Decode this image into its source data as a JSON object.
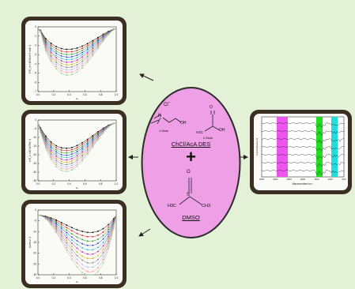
{
  "center": {
    "des_label": "ChCl/AcA DES",
    "plus": "+",
    "dmso_label": "DMSO",
    "chloride": "Cl",
    "charge": "−",
    "n_plus": "N",
    "oh": "OH",
    "one_mole": "1 Mole",
    "two_mole": "2 Mole",
    "acid_o": "O",
    "acid_oh": "OH",
    "acid_ch3": "H3C",
    "dmso_o": "O",
    "dmso_s": "S",
    "dmso_h3c": "H3C",
    "dmso_ch3": "CH3"
  },
  "plots": {
    "top": {
      "ylabel": "V^E_m ×10^6/m^3·mol^-1",
      "xlabel": "x₁",
      "xticks": [
        "0.0",
        "0.2",
        "0.4",
        "0.6",
        "0.8",
        "1.0"
      ],
      "yticks": [
        "0",
        "-1",
        "-2",
        "-3",
        "-4",
        "-5",
        "-6",
        "-7"
      ]
    },
    "middle": {
      "ylabel": "κ^E_s ×10^12/Pa^-1",
      "xlabel": "x₁",
      "xticks": [
        "0.0",
        "0.2",
        "0.4",
        "0.6",
        "0.8",
        "1.0"
      ],
      "yticks": [
        "0",
        "-5",
        "-10",
        "-15",
        "-20",
        "-25",
        "-30",
        "-35"
      ]
    },
    "bottom": {
      "ylabel": "Δu/m·s^-1",
      "xlabel": "x₁",
      "xticks": [
        "0.0",
        "0.2",
        "0.4",
        "0.6",
        "0.8",
        "1.0"
      ],
      "yticks": [
        "0",
        "-5",
        "-10",
        "-15",
        "-20",
        "-25",
        "-30"
      ]
    },
    "ir": {
      "ylabel": "Transmittance %",
      "xlabel": "Wavenumber/cm⁻¹",
      "xticks": [
        "3500",
        "3000",
        "2500",
        "2000",
        "1500",
        "1000",
        "500"
      ]
    }
  }
}
